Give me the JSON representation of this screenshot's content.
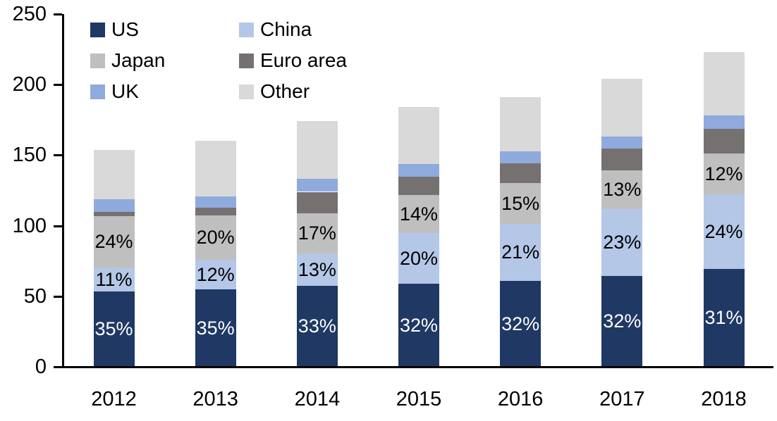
{
  "chart_data": {
    "type": "bar",
    "stacked": true,
    "title": "",
    "xlabel": "",
    "ylabel": "",
    "grid": false,
    "ylim": [
      0,
      250
    ],
    "yticks": [
      0,
      50,
      100,
      150,
      200,
      250
    ],
    "categories": [
      "2012",
      "2013",
      "2014",
      "2015",
      "2016",
      "2017",
      "2018"
    ],
    "series": [
      {
        "name": "US",
        "color": "#1f3864",
        "values": [
          53.5,
          55,
          57.5,
          59,
          61,
          64.5,
          69.5
        ],
        "labels": [
          "35%",
          "35%",
          "33%",
          "32%",
          "32%",
          "32%",
          "31%"
        ],
        "label_color": "#ffffff"
      },
      {
        "name": "China",
        "color": "#b4c7e7",
        "values": [
          17,
          21,
          23,
          36,
          40.5,
          47.5,
          53
        ],
        "labels": [
          "11%",
          "12%",
          "13%",
          "20%",
          "21%",
          "23%",
          "24%"
        ],
        "label_color": "#000000"
      },
      {
        "name": "Japan",
        "color": "#bfbfbf",
        "values": [
          36.5,
          31.5,
          28.5,
          27,
          28.5,
          27,
          28.5
        ],
        "labels": [
          "24%",
          "20%",
          "17%",
          "14%",
          "15%",
          "13%",
          "12%"
        ],
        "label_color": "#000000"
      },
      {
        "name": "Euro area",
        "color": "#767171",
        "values": [
          3,
          5.5,
          15,
          12.5,
          14,
          15.5,
          17.5
        ],
        "labels": null,
        "label_color": null
      },
      {
        "name": "UK",
        "color": "#8faadc",
        "values": [
          9,
          8,
          9,
          9,
          8.5,
          8.5,
          9.5
        ],
        "labels": null,
        "label_color": null
      },
      {
        "name": "Other",
        "color": "#d9d9d9",
        "values": [
          34.5,
          39,
          41,
          40.5,
          38.5,
          41,
          45
        ],
        "labels": null,
        "label_color": null
      }
    ],
    "totals": [
      153.5,
      160,
      174,
      184,
      191,
      204,
      223
    ],
    "legend": {
      "position": "top-left",
      "columns": 2,
      "items": [
        "US",
        "China",
        "Japan",
        "Euro area",
        "UK",
        "Other"
      ]
    }
  }
}
